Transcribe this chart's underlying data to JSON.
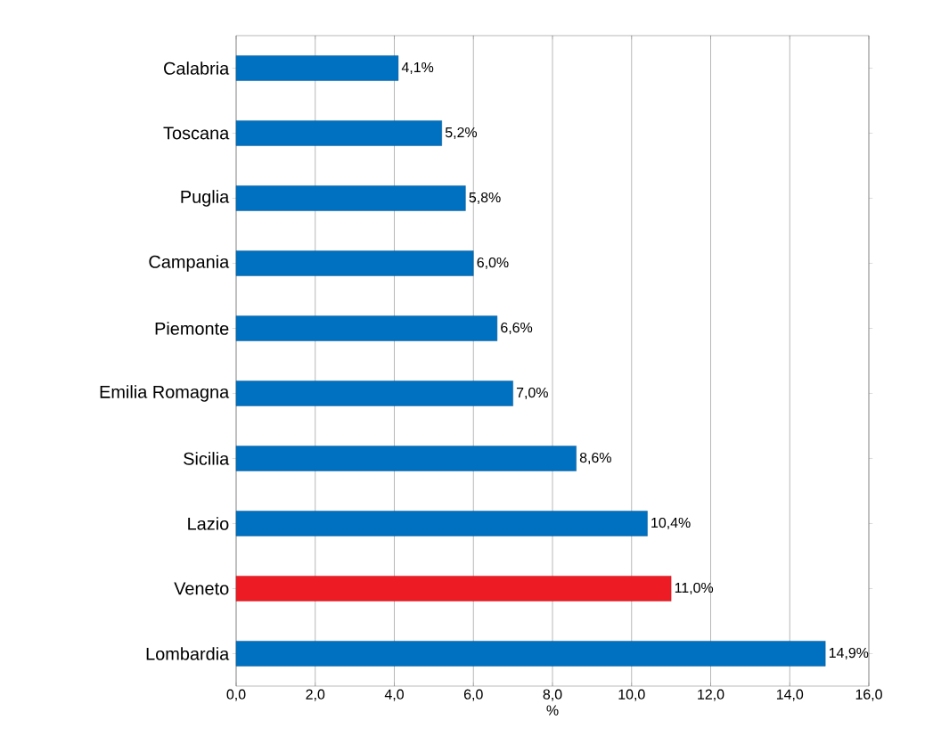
{
  "chart_data": {
    "type": "bar",
    "orientation": "horizontal",
    "xlabel": "%",
    "categories": [
      "Calabria",
      "Toscana",
      "Puglia",
      "Campania",
      "Piemonte",
      "Emilia Romagna",
      "Sicilia",
      "Lazio",
      "Veneto",
      "Lombardia"
    ],
    "values": [
      4.1,
      5.2,
      5.8,
      6.0,
      6.6,
      7.0,
      8.6,
      10.4,
      11.0,
      14.9
    ],
    "value_labels": [
      "4,1%",
      "5,2%",
      "5,8%",
      "6,0%",
      "6,6%",
      "7,0%",
      "8,6%",
      "10,4%",
      "11,0%",
      "14,9%"
    ],
    "colors": [
      "#0070c0",
      "#0070c0",
      "#0070c0",
      "#0070c0",
      "#0070c0",
      "#0070c0",
      "#0070c0",
      "#0070c0",
      "#ed1c24",
      "#0070c0"
    ],
    "xlim": [
      0,
      16
    ],
    "xticks": [
      {
        "value": 0,
        "label": "0,0"
      },
      {
        "value": 2,
        "label": "2,0"
      },
      {
        "value": 4,
        "label": "4,0"
      },
      {
        "value": 6,
        "label": "6,0"
      },
      {
        "value": 8,
        "label": "8,0"
      },
      {
        "value": 10,
        "label": "10,0"
      },
      {
        "value": 12,
        "label": "12,0"
      },
      {
        "value": 14,
        "label": "14,0"
      },
      {
        "value": 16,
        "label": "16,0"
      }
    ],
    "grid": "x"
  }
}
